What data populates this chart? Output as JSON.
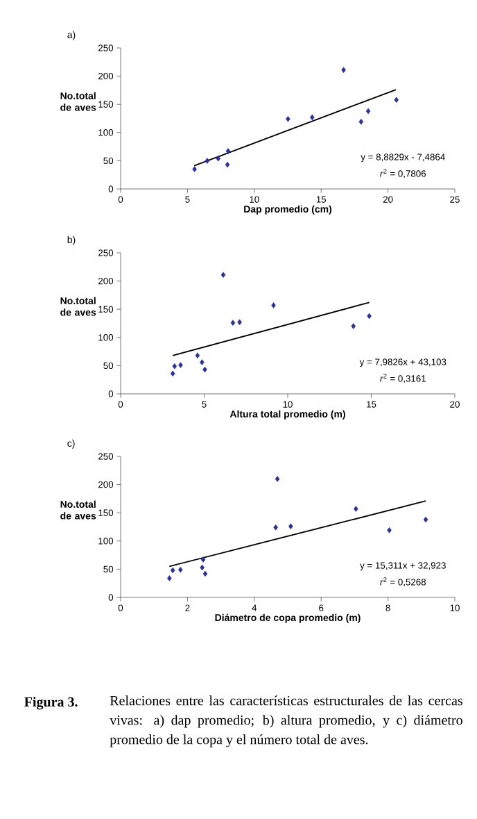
{
  "chart_data": [
    {
      "type": "scatter",
      "title": "a)",
      "xlabel": "Dap promedio (cm)",
      "ylabel": "No.total de aves",
      "xlim": [
        0,
        25
      ],
      "xticks": [
        0,
        5,
        10,
        15,
        20,
        25
      ],
      "ylim": [
        0,
        250
      ],
      "yticks": [
        0,
        50,
        100,
        150,
        200,
        250
      ],
      "marker": "diamond",
      "series": [
        {
          "color": "#2b3192",
          "x": [
            5.53,
            6.41,
            6.48,
            7.3,
            7.99,
            8.04,
            12.52,
            14.33,
            16.68,
            17.99,
            18.52,
            20.63
          ],
          "values": [
            35,
            null,
            50,
            54,
            43,
            67,
            124,
            127,
            211,
            119,
            138,
            158
          ]
        },
        {
          "type": "line",
          "marker": "none",
          "color": "#000000",
          "x": [
            5.5,
            20.6
          ],
          "values": [
            41,
            176
          ]
        }
      ],
      "annotations": [
        "y = 8,8829x - 7,4864",
        "*r*$^{2}$ = 0,7806"
      ]
    },
    {
      "type": "scatter",
      "title": "b)",
      "xlabel": "Altura total promedio (m)",
      "ylabel": "No.total de aves",
      "xlim": [
        0,
        20
      ],
      "xticks": [
        0,
        5,
        10,
        15,
        20
      ],
      "ylim": [
        0,
        250
      ],
      "yticks": [
        0,
        50,
        100,
        150,
        200,
        250
      ],
      "marker": "diamond",
      "series": [
        {
          "color": "#2b3192",
          "x": [
            3.12,
            3.23,
            3.59,
            4.6,
            4.87,
            5.04,
            6.14,
            6.72,
            7.12,
            9.15,
            13.93,
            14.88
          ],
          "values": [
            36,
            49,
            51,
            68,
            56,
            43,
            211,
            126,
            127,
            157,
            120,
            138
          ]
        },
        {
          "type": "line",
          "marker": "none",
          "color": "#000000",
          "x": [
            3.12,
            14.88
          ],
          "values": [
            68,
            162
          ]
        }
      ],
      "annotations": [
        "y = 7,9826x + 43,103",
        "*r*$^{2}$ = 0,3161"
      ]
    },
    {
      "type": "scatter",
      "title": "c)",
      "xlabel": "Diámetro de copa promedio (m)",
      "ylabel": "No.total de aves",
      "xlim": [
        0,
        10
      ],
      "xticks": [
        0,
        2,
        4,
        6,
        8,
        10
      ],
      "ylim": [
        0,
        250
      ],
      "yticks": [
        0,
        50,
        100,
        150,
        200,
        250
      ],
      "marker": "diamond",
      "series": [
        {
          "color": "#2b3192",
          "x": [
            1.46,
            1.56,
            1.79,
            2.44,
            2.47,
            2.53,
            4.64,
            4.69,
            5.09,
            7.04,
            8.04,
            9.13
          ],
          "values": [
            34,
            48,
            49,
            53,
            67,
            42,
            124,
            210,
            126,
            157,
            119,
            138
          ]
        },
        {
          "type": "line",
          "marker": "none",
          "color": "#000000",
          "x": [
            1.46,
            9.13
          ],
          "values": [
            55,
            171
          ]
        }
      ],
      "annotations": [
        "y = 15,311x + 32,923",
        "*r*$^{2}$ = 0,5268",
        "Figura 3.",
        "Relaciones entre las características estructurales de las cercas vivas: a) dap promedio; b) altura promedio, y c) diámetro promedio de la copa y el número total de aves."
      ]
    }
  ]
}
